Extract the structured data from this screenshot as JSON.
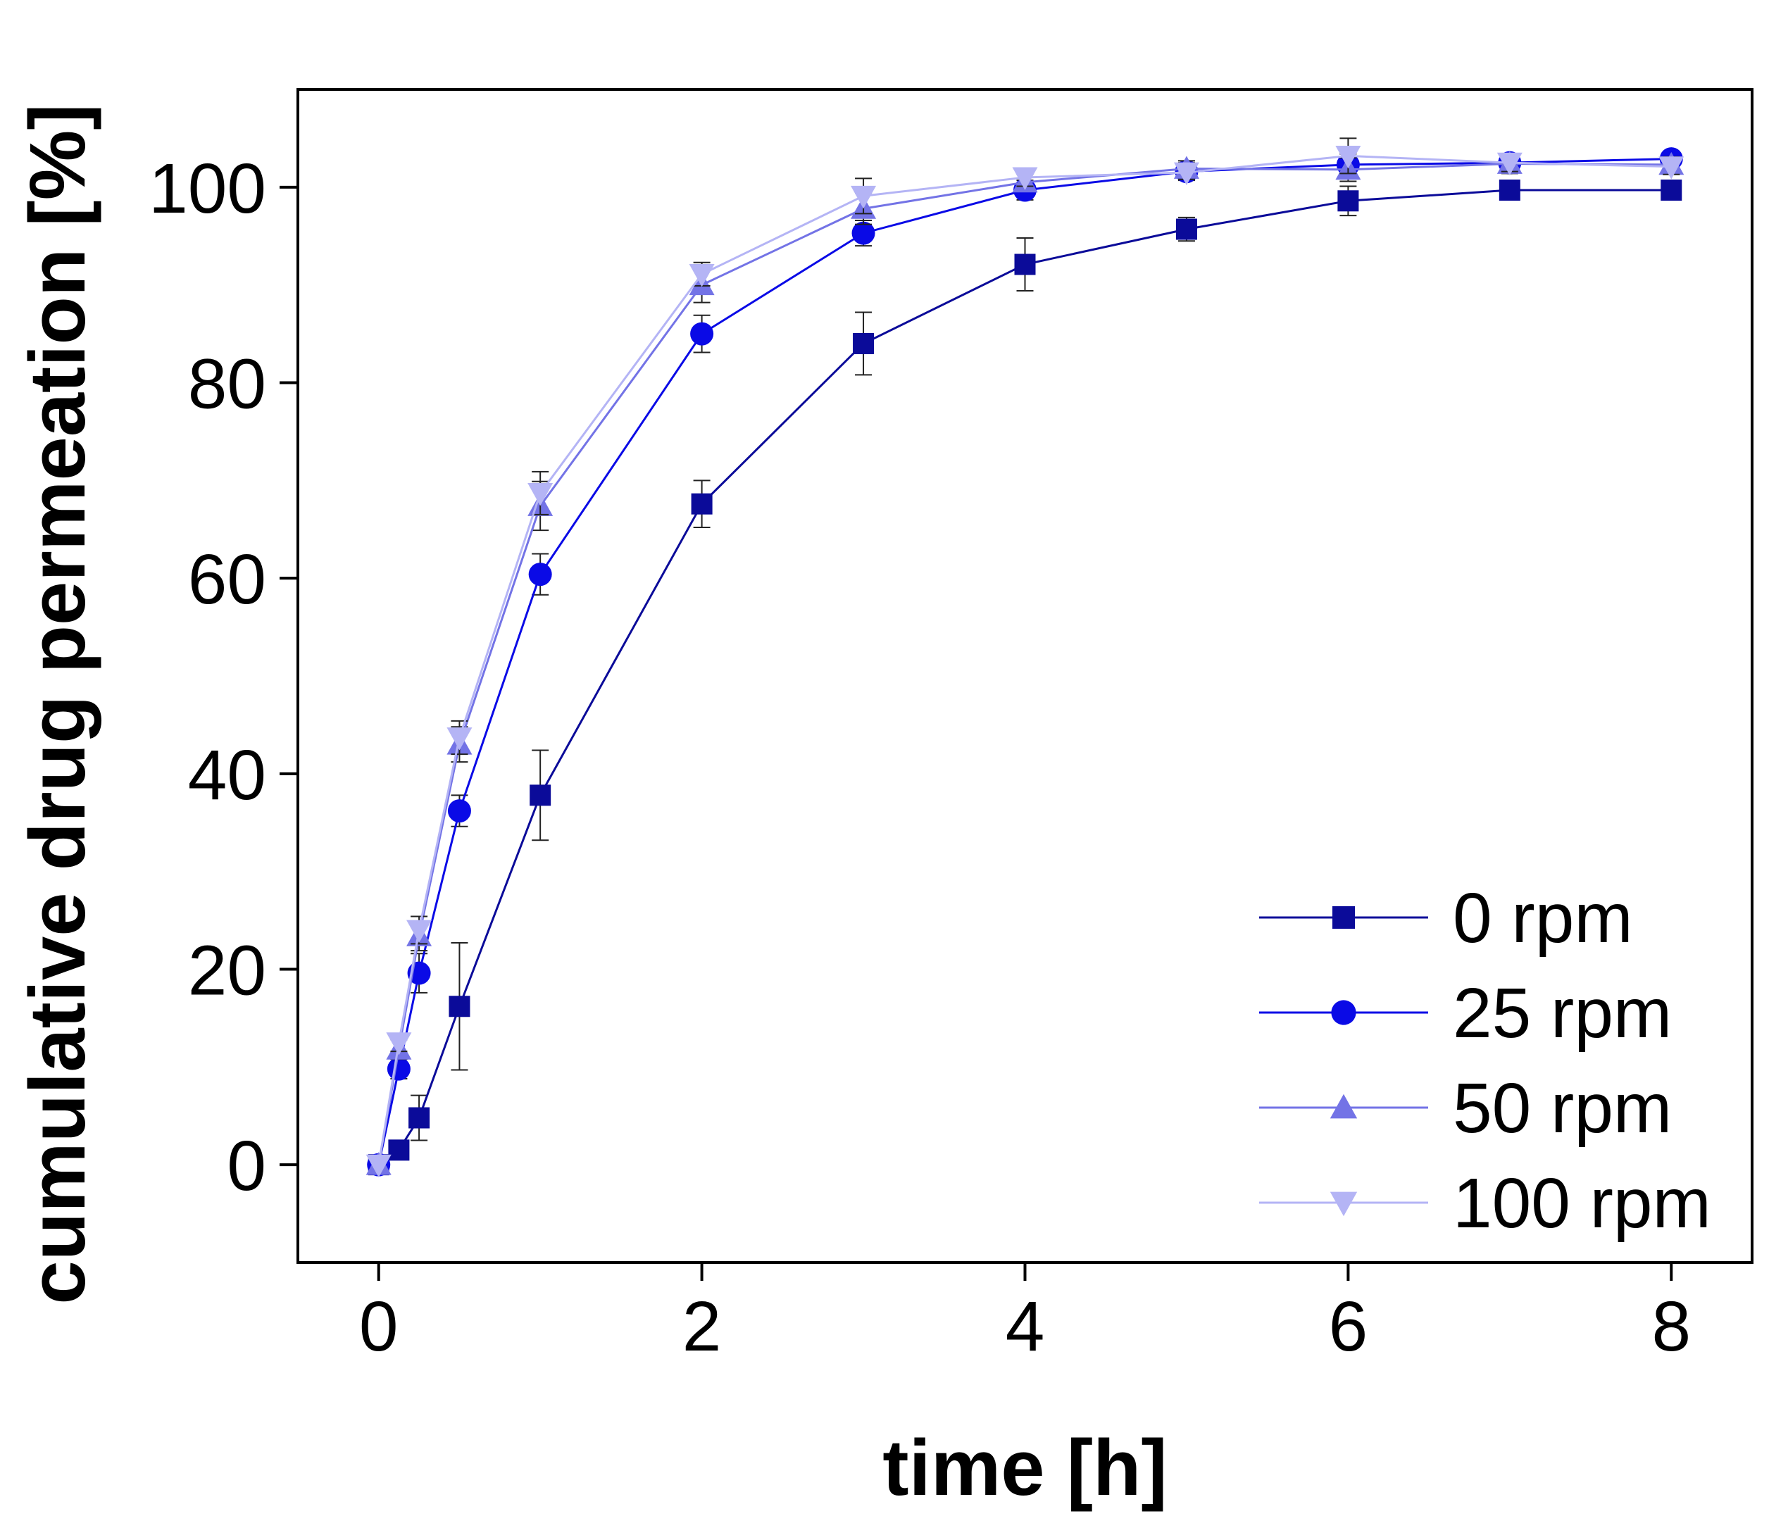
{
  "chart_data": {
    "type": "line",
    "title": "",
    "xlabel": "time [h]",
    "ylabel": "cumulative drug permeation [%]",
    "xlim": [
      -0.5,
      8.5
    ],
    "ylim": [
      -10,
      110
    ],
    "xticks": [
      0,
      2,
      4,
      6,
      8
    ],
    "yticks": [
      0,
      20,
      40,
      60,
      80,
      100
    ],
    "xtick_labels": [
      "0",
      "2",
      "4",
      "6",
      "8"
    ],
    "ytick_labels": [
      "0",
      "20",
      "40",
      "60",
      "80",
      "100"
    ],
    "grid": false,
    "legend_position": "bottom-right",
    "series": [
      {
        "name": "0 rpm",
        "color": "#0b0b99",
        "marker": "square",
        "x": [
          0,
          0.125,
          0.25,
          0.5,
          1,
          2,
          3,
          4,
          5,
          6,
          7,
          8
        ],
        "y": [
          0,
          1.5,
          4.8,
          16.2,
          37.8,
          67.6,
          84.0,
          92.1,
          95.7,
          98.6,
          99.7,
          99.7
        ],
        "err": [
          0,
          0.5,
          2.3,
          6.5,
          4.6,
          2.4,
          3.2,
          2.7,
          1.2,
          1.5,
          0.9,
          0.8
        ]
      },
      {
        "name": "25 rpm",
        "color": "#0a0ae6",
        "marker": "circle",
        "x": [
          0,
          0.125,
          0.25,
          0.5,
          1,
          2,
          3,
          4,
          5,
          6,
          7,
          8
        ],
        "y": [
          0,
          9.8,
          19.6,
          36.2,
          60.4,
          85.0,
          95.3,
          99.7,
          101.6,
          102.3,
          102.5,
          102.9
        ],
        "err": [
          0,
          1.0,
          2.0,
          1.6,
          2.1,
          1.9,
          1.3,
          1.0,
          0.9,
          1.1,
          0.8,
          0.7
        ]
      },
      {
        "name": "50 rpm",
        "color": "#7373e6",
        "marker": "triangle-up",
        "x": [
          0,
          0.125,
          0.25,
          0.5,
          1,
          2,
          3,
          4,
          5,
          6,
          7,
          8
        ],
        "y": [
          0,
          11.8,
          23.4,
          43.0,
          67.4,
          90.0,
          97.8,
          100.5,
          101.9,
          101.8,
          102.4,
          102.3
        ],
        "err": [
          0,
          1.0,
          1.5,
          1.8,
          2.5,
          1.8,
          1.6,
          0.8,
          0.8,
          1.2,
          1.0,
          0.8
        ]
      },
      {
        "name": "100 rpm",
        "color": "#b4b4f5",
        "marker": "triangle-down",
        "x": [
          0,
          0.125,
          0.25,
          0.5,
          1,
          2,
          3,
          4,
          5,
          6,
          7,
          8
        ],
        "y": [
          0,
          12.5,
          24.0,
          43.7,
          68.7,
          91.1,
          99.1,
          101.0,
          101.5,
          103.2,
          102.5,
          102.1
        ],
        "err": [
          0,
          0.9,
          1.4,
          1.7,
          2.2,
          1.2,
          1.8,
          0.9,
          0.7,
          1.8,
          0.9,
          0.8
        ]
      }
    ]
  }
}
